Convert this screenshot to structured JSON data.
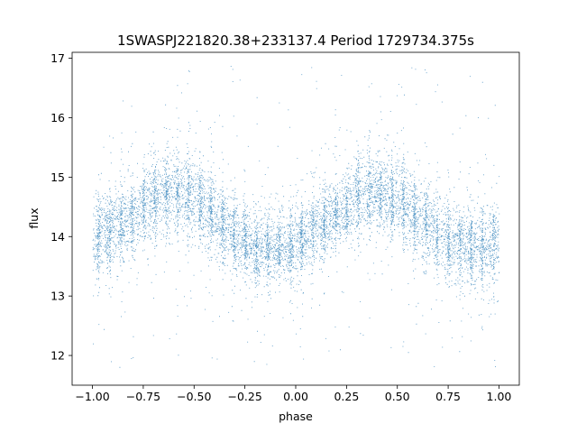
{
  "chart_data": {
    "type": "scatter",
    "title": "1SWASPJ221820.38+233137.4 Period 1729734.375s",
    "xlabel": "phase",
    "ylabel": "flux",
    "xlim": [
      -1.1,
      1.1
    ],
    "ylim": [
      11.5,
      17.1
    ],
    "xticks": [
      -1.0,
      -0.75,
      -0.5,
      -0.25,
      0.0,
      0.25,
      0.5,
      0.75,
      1.0
    ],
    "xtick_labels": [
      "−1.00",
      "−0.75",
      "−0.50",
      "−0.25",
      "0.00",
      "0.25",
      "0.50",
      "0.75",
      "1.00"
    ],
    "yticks": [
      12,
      13,
      14,
      15,
      16,
      17
    ],
    "ytick_labels": [
      "12",
      "13",
      "14",
      "15",
      "16",
      "17"
    ],
    "grid": false,
    "legend": "none",
    "marker_color": "#1f77b4",
    "series": [
      {
        "name": "",
        "x_range": [
          -1.0,
          1.0
        ],
        "baseline_flux": 14.2,
        "core_band": [
          13.3,
          15.0
        ],
        "outlier_range": [
          11.8,
          16.9
        ],
        "periodic_in_phase": 1.0,
        "envelope_profile": {
          "phase": [
            -1.0,
            -0.9,
            -0.8,
            -0.7,
            -0.6,
            -0.5,
            -0.4,
            -0.3,
            -0.2,
            -0.1,
            0.0,
            0.1,
            0.2,
            0.3,
            0.4,
            0.5,
            0.6,
            0.7,
            0.8,
            0.9,
            1.0
          ],
          "upper": [
            14.7,
            14.9,
            15.0,
            15.4,
            15.5,
            15.5,
            15.1,
            14.8,
            14.6,
            14.5,
            14.6,
            14.9,
            15.0,
            15.4,
            15.5,
            15.5,
            15.1,
            14.8,
            14.6,
            14.5,
            14.7
          ],
          "lower": [
            13.2,
            13.4,
            13.7,
            13.9,
            14.0,
            13.8,
            13.6,
            13.3,
            13.1,
            13.1,
            13.2,
            13.4,
            13.7,
            13.9,
            14.0,
            13.8,
            13.6,
            13.3,
            13.1,
            13.1,
            13.2
          ]
        }
      }
    ]
  }
}
